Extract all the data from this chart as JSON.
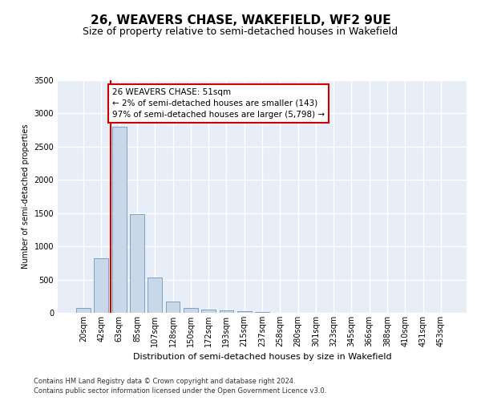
{
  "title1": "26, WEAVERS CHASE, WAKEFIELD, WF2 9UE",
  "title2": "Size of property relative to semi-detached houses in Wakefield",
  "xlabel": "Distribution of semi-detached houses by size in Wakefield",
  "ylabel": "Number of semi-detached properties",
  "footer1": "Contains HM Land Registry data © Crown copyright and database right 2024.",
  "footer2": "Contains public sector information licensed under the Open Government Licence v3.0.",
  "categories": [
    "20sqm",
    "42sqm",
    "63sqm",
    "85sqm",
    "107sqm",
    "128sqm",
    "150sqm",
    "172sqm",
    "193sqm",
    "215sqm",
    "237sqm",
    "258sqm",
    "280sqm",
    "301sqm",
    "323sqm",
    "345sqm",
    "366sqm",
    "388sqm",
    "410sqm",
    "431sqm",
    "453sqm"
  ],
  "values": [
    75,
    820,
    2800,
    1480,
    535,
    165,
    75,
    50,
    35,
    20,
    10,
    5,
    3,
    2,
    1,
    1,
    0,
    0,
    0,
    0,
    0
  ],
  "bar_color": "#c8d8e8",
  "bar_edge_color": "#5a8ab0",
  "ylim": [
    0,
    3500
  ],
  "yticks": [
    0,
    500,
    1000,
    1500,
    2000,
    2500,
    3000,
    3500
  ],
  "property_line_x": 1.5,
  "property_line_color": "#cc0000",
  "annotation_text": "26 WEAVERS CHASE: 51sqm\n← 2% of semi-detached houses are smaller (143)\n97% of semi-detached houses are larger (5,798) →",
  "annotation_box_color": "#ffffff",
  "annotation_box_edge": "#cc0000",
  "bg_color": "#e8eef8",
  "grid_color": "#ffffff",
  "title1_fontsize": 11,
  "title2_fontsize": 9,
  "xlabel_fontsize": 8,
  "ylabel_fontsize": 7,
  "tick_fontsize": 7,
  "annot_fontsize": 7.5,
  "footer_fontsize": 6
}
